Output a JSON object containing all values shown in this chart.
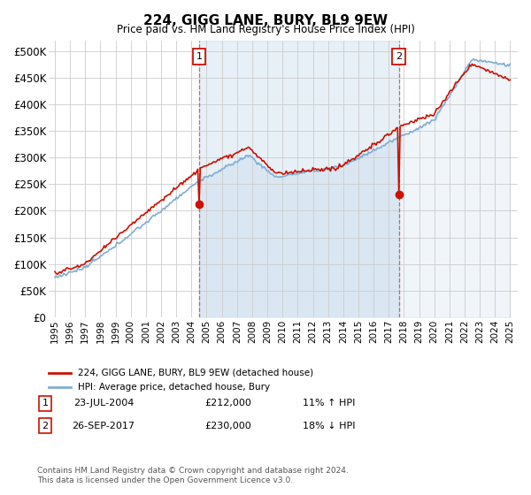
{
  "title": "224, GIGG LANE, BURY, BL9 9EW",
  "subtitle": "Price paid vs. HM Land Registry's House Price Index (HPI)",
  "ylabel_ticks": [
    "£0",
    "£50K",
    "£100K",
    "£150K",
    "£200K",
    "£250K",
    "£300K",
    "£350K",
    "£400K",
    "£450K",
    "£500K"
  ],
  "ytick_values": [
    0,
    50000,
    100000,
    150000,
    200000,
    250000,
    300000,
    350000,
    400000,
    450000,
    500000
  ],
  "ylim": [
    0,
    520000
  ],
  "hpi_color": "#7eaed4",
  "hpi_fill_color": "#d6e8f5",
  "price_color": "#cc1100",
  "marker1_date": "2004-07",
  "marker1_label": "1",
  "marker1_price": 212000,
  "marker2_date": "2017-09",
  "marker2_label": "2",
  "marker2_price": 230000,
  "legend_label1": "224, GIGG LANE, BURY, BL9 9EW (detached house)",
  "legend_label2": "HPI: Average price, detached house, Bury",
  "annotation1_date": "23-JUL-2004",
  "annotation1_price": "£212,000",
  "annotation1_hpi": "11% ↑ HPI",
  "annotation2_date": "26-SEP-2017",
  "annotation2_price": "£230,000",
  "annotation2_hpi": "18% ↓ HPI",
  "footer": "Contains HM Land Registry data © Crown copyright and database right 2024.\nThis data is licensed under the Open Government Licence v3.0.",
  "background_color": "#ffffff",
  "grid_color": "#cccccc"
}
